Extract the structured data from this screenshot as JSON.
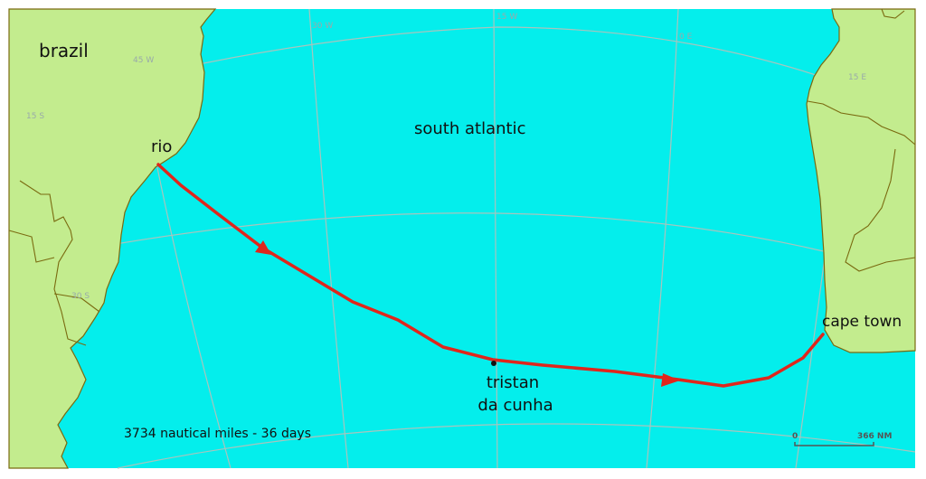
{
  "map": {
    "colors": {
      "ocean": "#04eeec",
      "land": "#c3ec8e",
      "border": "#7a6a10",
      "grid": "#a9b8b0",
      "route": "#e0261c"
    },
    "labels": {
      "brazil": "brazil",
      "rio": "rio",
      "ocean": "south atlantic",
      "tristan_line1": "tristan",
      "tristan_line2": "da cunha",
      "cape_town": "cape town"
    },
    "graticule": {
      "lon_45w": "45 W",
      "lon_30w": "30 W",
      "lon_15w": "15 W",
      "lon_0e": "0 E",
      "lon_15e": "15 E",
      "lat_15s": "15 S",
      "lat_30s": "30 S"
    },
    "route_summary": "3734 nautical miles - 36 days",
    "scale_bar": {
      "start": "0",
      "end": "366 NM"
    }
  }
}
